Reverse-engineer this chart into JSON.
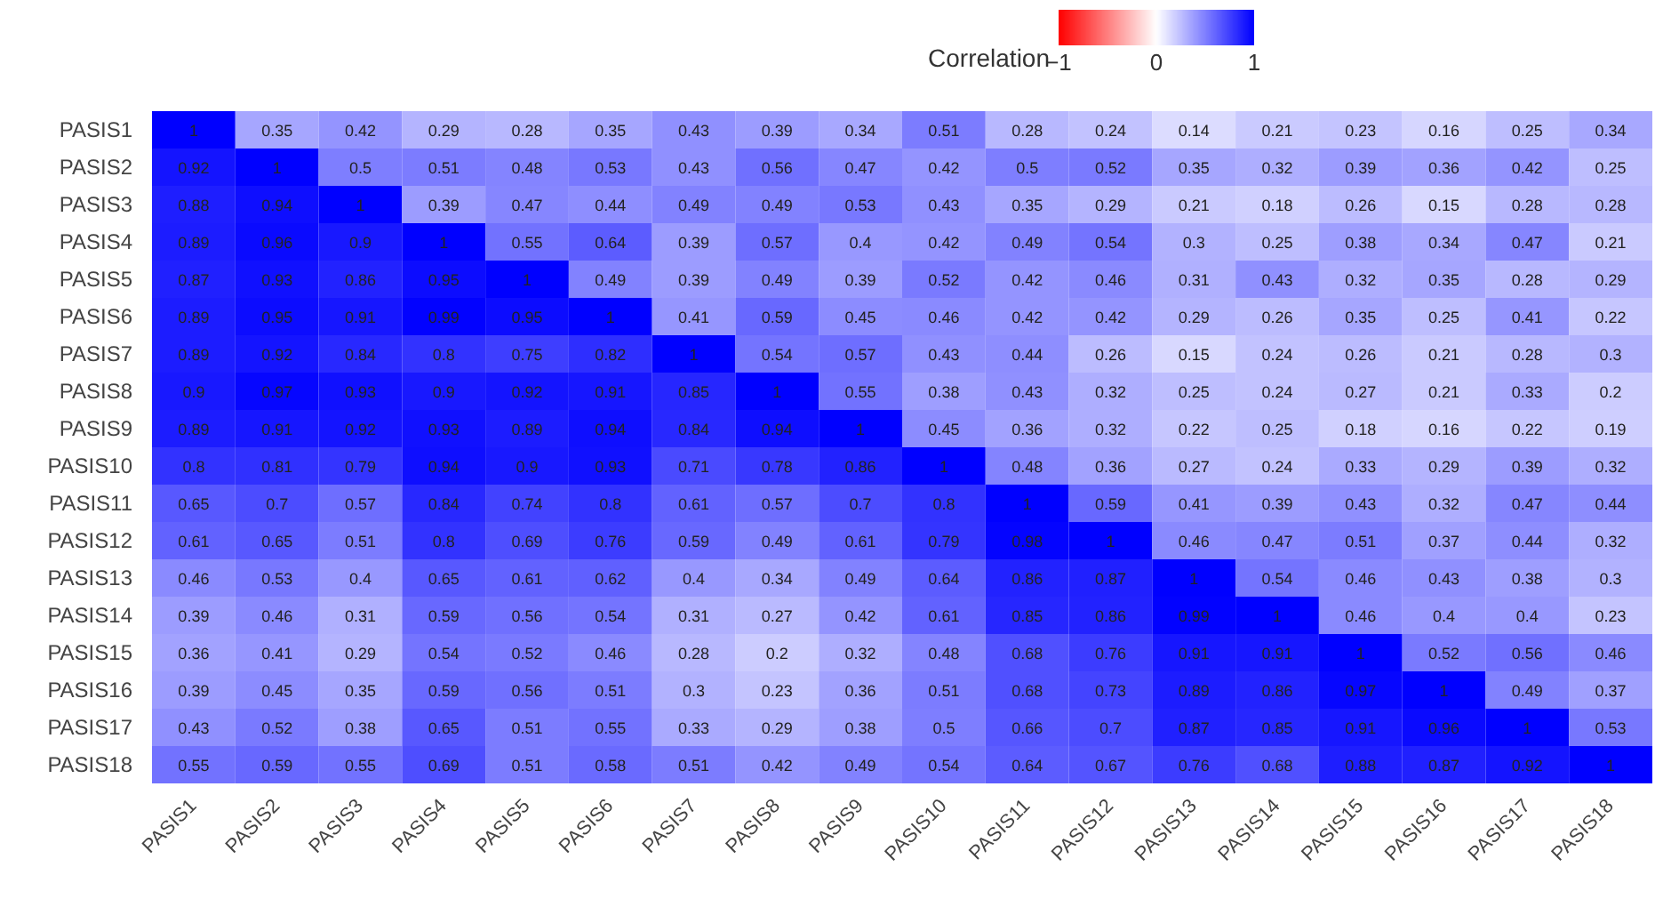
{
  "chart_data": {
    "type": "heatmap",
    "clabel": "Correlation",
    "clim": [
      -1,
      1
    ],
    "cticks": [
      -1,
      0,
      1
    ],
    "colors": [
      "#ff0000",
      "#ffffff",
      "#0000ff"
    ],
    "data_labels": true,
    "categories": [
      "PASIS1",
      "PASIS2",
      "PASIS3",
      "PASIS4",
      "PASIS5",
      "PASIS6",
      "PASIS7",
      "PASIS8",
      "PASIS9",
      "PASIS10",
      "PASIS11",
      "PASIS12",
      "PASIS13",
      "PASIS14",
      "PASIS15",
      "PASIS16",
      "PASIS17",
      "PASIS18"
    ],
    "y_categories": [
      "PASIS1",
      "PASIS2",
      "PASIS3",
      "PASIS4",
      "PASIS5",
      "PASIS6",
      "PASIS7",
      "PASIS8",
      "PASIS9",
      "PASIS10",
      "PASIS11",
      "PASIS12",
      "PASIS13",
      "PASIS14",
      "PASIS15",
      "PASIS16",
      "PASIS17",
      "PASIS18"
    ],
    "cells": [
      [
        1,
        0.35,
        0.42,
        0.29,
        0.28,
        0.35,
        0.43,
        0.39,
        0.34,
        0.51,
        0.28,
        0.24,
        0.14,
        0.21,
        0.23,
        0.16,
        0.25,
        0.34
      ],
      [
        0.92,
        1,
        0.5,
        0.51,
        0.48,
        0.53,
        0.43,
        0.56,
        0.47,
        0.42,
        0.5,
        0.52,
        0.35,
        0.32,
        0.39,
        0.36,
        0.42,
        0.25
      ],
      [
        0.88,
        0.94,
        1,
        0.39,
        0.47,
        0.44,
        0.49,
        0.49,
        0.53,
        0.43,
        0.35,
        0.29,
        0.21,
        0.18,
        0.26,
        0.15,
        0.28,
        0.28
      ],
      [
        0.89,
        0.96,
        0.9,
        1,
        0.55,
        0.64,
        0.39,
        0.57,
        0.4,
        0.42,
        0.49,
        0.54,
        0.3,
        0.25,
        0.38,
        0.34,
        0.47,
        0.21
      ],
      [
        0.87,
        0.93,
        0.86,
        0.95,
        1,
        0.49,
        0.39,
        0.49,
        0.39,
        0.52,
        0.42,
        0.46,
        0.31,
        0.43,
        0.32,
        0.35,
        0.28,
        0.29
      ],
      [
        0.89,
        0.95,
        0.91,
        0.99,
        0.95,
        1,
        0.41,
        0.59,
        0.45,
        0.46,
        0.42,
        0.42,
        0.29,
        0.26,
        0.35,
        0.25,
        0.41,
        0.22
      ],
      [
        0.89,
        0.92,
        0.84,
        0.8,
        0.75,
        0.82,
        1,
        0.54,
        0.57,
        0.43,
        0.44,
        0.26,
        0.15,
        0.24,
        0.26,
        0.21,
        0.28,
        0.3
      ],
      [
        0.9,
        0.97,
        0.93,
        0.9,
        0.92,
        0.91,
        0.85,
        1,
        0.55,
        0.38,
        0.43,
        0.32,
        0.25,
        0.24,
        0.27,
        0.21,
        0.33,
        0.2
      ],
      [
        0.89,
        0.91,
        0.92,
        0.93,
        0.89,
        0.94,
        0.84,
        0.94,
        1,
        0.45,
        0.36,
        0.32,
        0.22,
        0.25,
        0.18,
        0.16,
        0.22,
        0.19
      ],
      [
        0.8,
        0.81,
        0.79,
        0.94,
        0.9,
        0.93,
        0.71,
        0.78,
        0.86,
        1,
        0.48,
        0.36,
        0.27,
        0.24,
        0.33,
        0.29,
        0.39,
        0.32
      ],
      [
        0.65,
        0.7,
        0.57,
        0.84,
        0.74,
        0.8,
        0.61,
        0.57,
        0.7,
        0.8,
        1,
        0.59,
        0.41,
        0.39,
        0.43,
        0.32,
        0.47,
        0.44
      ],
      [
        0.61,
        0.65,
        0.51,
        0.8,
        0.69,
        0.76,
        0.59,
        0.49,
        0.61,
        0.79,
        0.98,
        1,
        0.46,
        0.47,
        0.51,
        0.37,
        0.44,
        0.32
      ],
      [
        0.46,
        0.53,
        0.4,
        0.65,
        0.61,
        0.62,
        0.4,
        0.34,
        0.49,
        0.64,
        0.86,
        0.87,
        1,
        0.54,
        0.46,
        0.43,
        0.38,
        0.3
      ],
      [
        0.39,
        0.46,
        0.31,
        0.59,
        0.56,
        0.54,
        0.31,
        0.27,
        0.42,
        0.61,
        0.85,
        0.86,
        0.99,
        1,
        0.46,
        0.4,
        0.4,
        0.23
      ],
      [
        0.36,
        0.41,
        0.29,
        0.54,
        0.52,
        0.46,
        0.28,
        0.2,
        0.32,
        0.48,
        0.68,
        0.76,
        0.91,
        0.91,
        1,
        0.52,
        0.56,
        0.46
      ],
      [
        0.39,
        0.45,
        0.35,
        0.59,
        0.56,
        0.51,
        0.3,
        0.23,
        0.36,
        0.51,
        0.68,
        0.73,
        0.89,
        0.86,
        0.97,
        1,
        0.49,
        0.37
      ],
      [
        0.43,
        0.52,
        0.38,
        0.65,
        0.51,
        0.55,
        0.33,
        0.29,
        0.38,
        0.5,
        0.66,
        0.7,
        0.87,
        0.85,
        0.91,
        0.96,
        1,
        0.53
      ],
      [
        0.55,
        0.59,
        0.55,
        0.69,
        0.51,
        0.58,
        0.51,
        0.42,
        0.49,
        0.54,
        0.64,
        0.67,
        0.76,
        0.68,
        0.88,
        0.87,
        0.92,
        1
      ]
    ]
  }
}
